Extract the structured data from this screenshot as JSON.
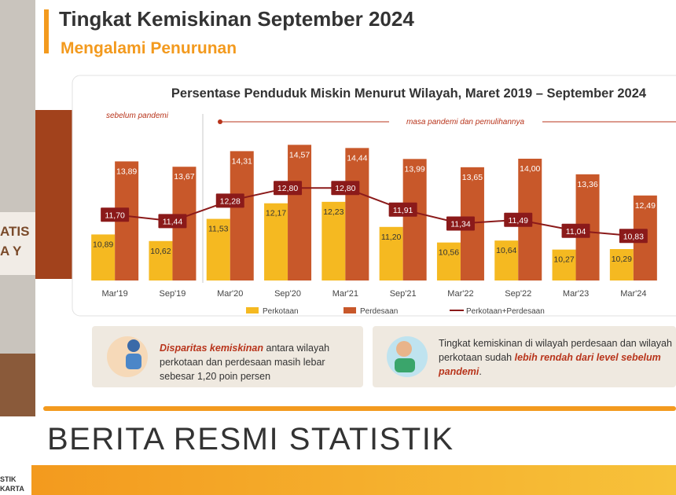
{
  "slide": {
    "title": "Tingkat Kemiskinan September 2024",
    "subtitle": "Mengalami Penurunan",
    "box1": {
      "l1a": "Disparitas kemiskinan",
      "l1b": " antara wilayah",
      "l2": "perkotaan dan perdesaan masih lebar",
      "l3": "sebesar 1,20 poin persen"
    },
    "box2": {
      "l1": "Tingkat kemiskinan di wilayah perdesaan dan wilayah",
      "l2a": "perkotaan sudah ",
      "l2b": "lebih rendah dari level sebelum",
      "l3a": "pandemi",
      "l3b": "."
    }
  },
  "banner": "BERITA RESMI STATISTIK",
  "background": {
    "t1": "ATIS",
    "t2": "A Y",
    "t3": "STIK",
    "t4": "KARTA"
  },
  "chart_data": {
    "type": "bar",
    "title": "Persentase Penduduk Miskin Menurut Wilayah, Maret 2019 – September 2024",
    "annotations": [
      "sebelum pandemi",
      "masa pandemi dan pemulihannya"
    ],
    "categories": [
      "Mar'19",
      "Sep'19",
      "Mar'20",
      "Sep'20",
      "Mar'21",
      "Sep'21",
      "Mar'22",
      "Sep'22",
      "Mar'23",
      "Mar'24"
    ],
    "ylim": [
      9,
      15
    ],
    "series": [
      {
        "name": "Perkotaan",
        "color": "#f5b921",
        "values": [
          10.89,
          10.62,
          11.53,
          12.17,
          12.23,
          11.2,
          10.56,
          10.64,
          10.27,
          10.29
        ],
        "value_labels": [
          "10,89",
          "10,62",
          "11,53",
          "12,17",
          "12,23",
          "11,20",
          "10,56",
          "10,64",
          "10,27",
          "10,29"
        ]
      },
      {
        "name": "Perdesaan",
        "color": "#c8582a",
        "values": [
          13.89,
          13.67,
          14.31,
          14.57,
          14.44,
          13.99,
          13.65,
          14.0,
          13.36,
          12.49
        ],
        "value_labels": [
          "13,89",
          "13,67",
          "14,31",
          "14,57",
          "14,44",
          "13,99",
          "13,65",
          "14,00",
          "13,36",
          "12,49"
        ]
      },
      {
        "name": "Perkotaan+Perdesaan",
        "color": "#8b1a1a",
        "type": "line",
        "values": [
          11.7,
          11.44,
          12.28,
          12.8,
          12.8,
          11.91,
          11.34,
          11.49,
          11.04,
          10.83
        ],
        "value_labels": [
          "11,70",
          "11,44",
          "12,28",
          "12,80",
          "12,80",
          "11,91",
          "11,34",
          "11,49",
          "11,04",
          "10,83"
        ]
      }
    ]
  }
}
